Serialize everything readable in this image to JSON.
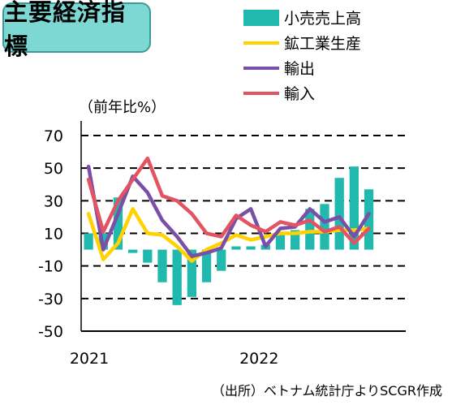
{
  "title": "主要経済指標",
  "unit": "（前年比%）",
  "source": "（出所）ベトナム統計庁よりSCGR作成",
  "chart_data": {
    "type": "bar",
    "x": [
      "2021-01",
      "2021-02",
      "2021-03",
      "2021-04",
      "2021-05",
      "2021-06",
      "2021-07",
      "2021-08",
      "2021-09",
      "2021-10",
      "2021-11",
      "2021-12",
      "2022-01",
      "2022-02",
      "2022-03",
      "2022-04",
      "2022-05",
      "2022-06",
      "2022-07",
      "2022-08",
      "2022-09",
      "2022-10"
    ],
    "x_tick_labels": [
      {
        "x": "2021-01",
        "label": "2021"
      },
      {
        "x": "2022-01",
        "label": "2022"
      }
    ],
    "ylim": [
      -50,
      70
    ],
    "yticks": [
      70,
      50,
      30,
      10,
      -10,
      -30,
      -50
    ],
    "grid": "dashed horizontal",
    "legend_position": "top-right",
    "series": [
      {
        "name": "小売売上高",
        "type": "bar",
        "color": "#21b8ad",
        "values": [
          10,
          10,
          32,
          -2,
          -8,
          -20,
          -34,
          -29,
          -20,
          -13,
          2,
          2,
          3,
          10,
          12,
          25,
          28,
          44,
          51,
          37,
          null,
          null
        ]
      },
      {
        "name": "鉱工業生産",
        "type": "line",
        "color": "#ffd200",
        "values": [
          22,
          -6,
          4,
          25,
          10,
          9,
          2,
          -7,
          0,
          4,
          9,
          6,
          8,
          10,
          10,
          11,
          11,
          12,
          12,
          13,
          null,
          null
        ]
      },
      {
        "name": "輸出",
        "type": "line",
        "color": "#7a4fa8",
        "values": [
          51,
          0,
          22,
          45,
          35,
          18,
          8,
          -4,
          -2,
          1,
          19,
          25,
          2,
          13,
          14,
          25,
          17,
          20,
          8,
          22,
          null,
          null
        ]
      },
      {
        "name": "輸入",
        "type": "line",
        "color": "#e35462",
        "values": [
          43,
          11,
          30,
          43,
          56,
          33,
          30,
          22,
          10,
          8,
          21,
          15,
          11,
          17,
          15,
          18,
          11,
          14,
          4,
          13,
          null,
          null
        ]
      }
    ]
  }
}
